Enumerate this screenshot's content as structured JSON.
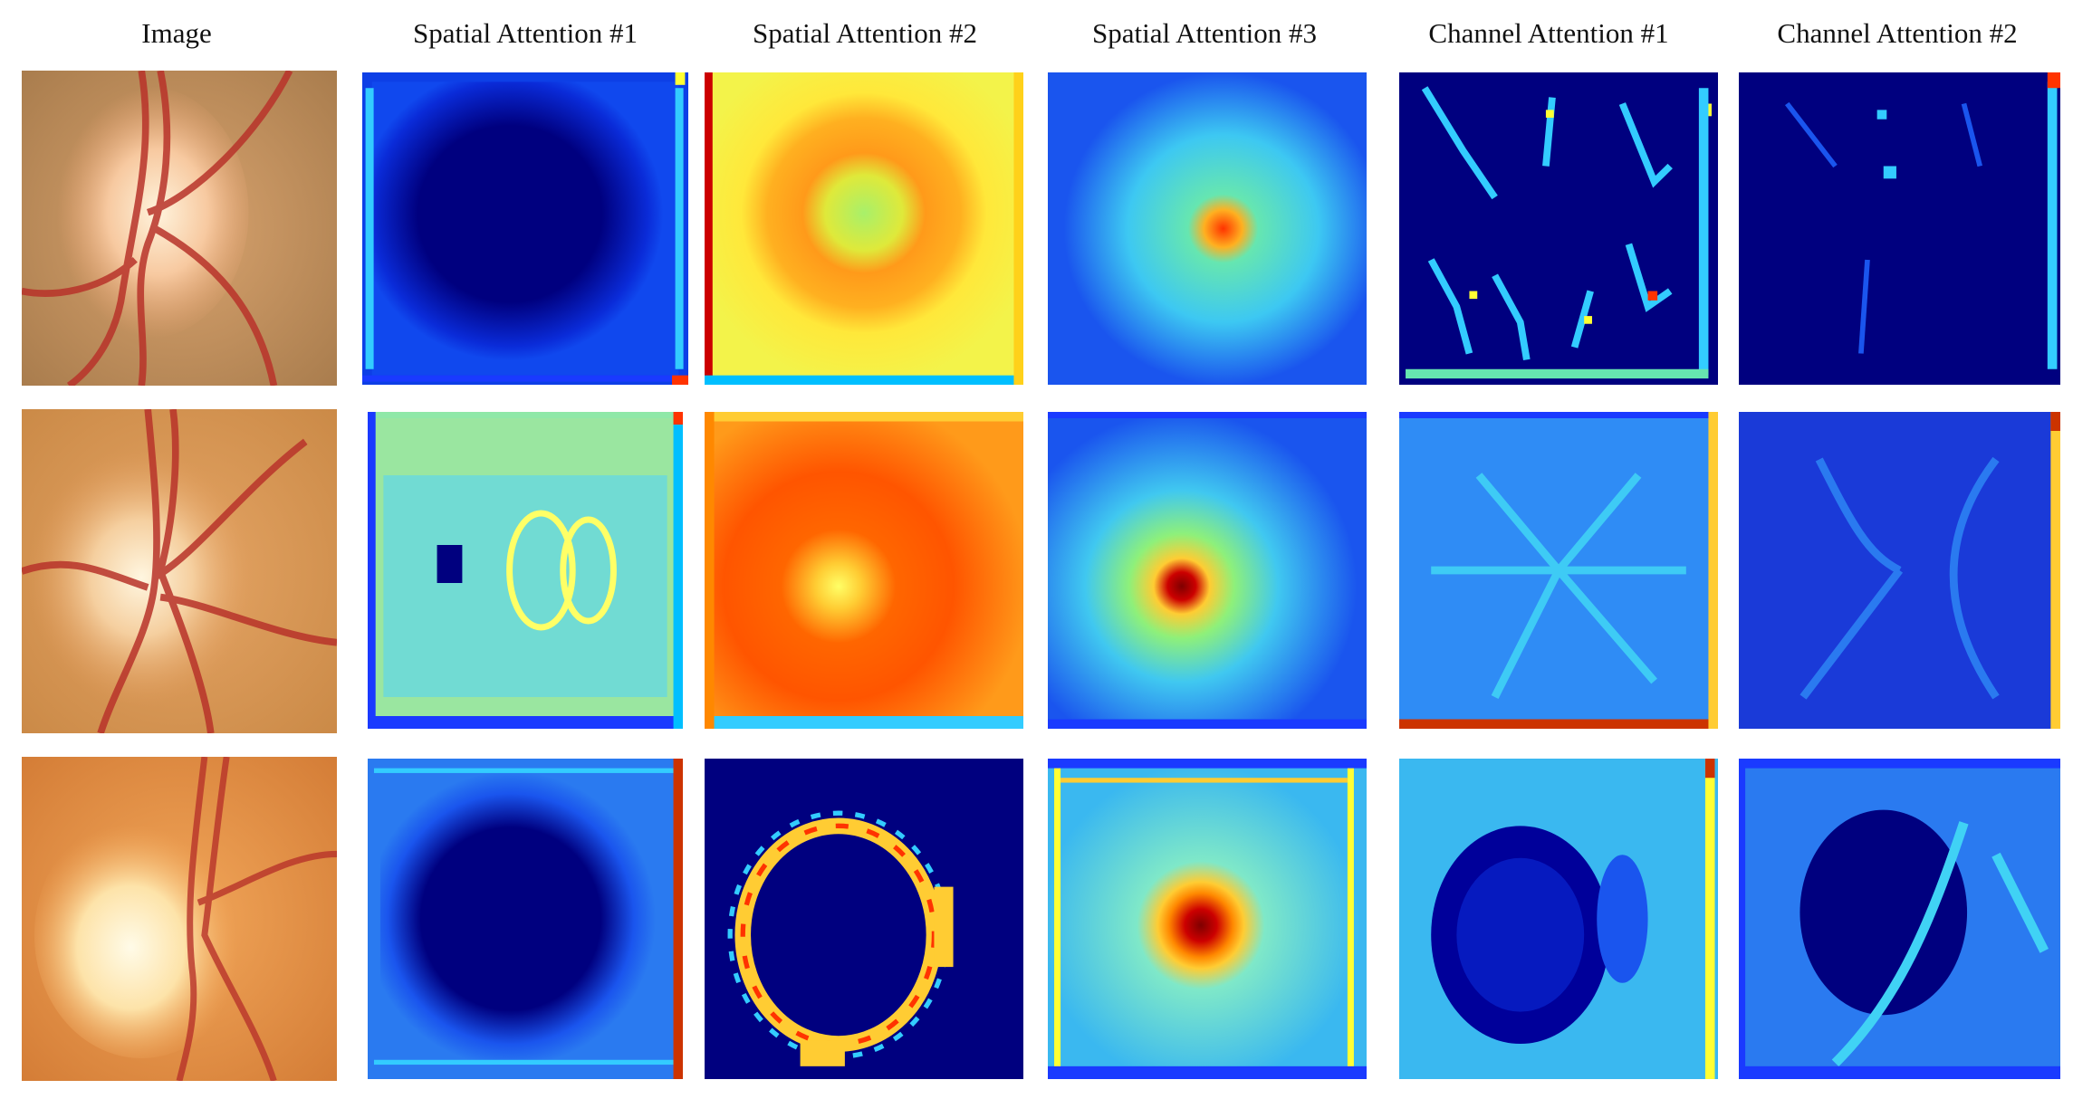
{
  "headers": [
    "Image",
    "Spatial Attention #1",
    "Spatial Attention #2",
    "Spatial Attention #3",
    "Channel Attention #1",
    "Channel Attention #2"
  ],
  "colors": {
    "jet_dark_blue": "#00007f",
    "jet_blue": "#0033ff",
    "jet_cyan": "#33ccff",
    "jet_yellow": "#ffff33",
    "jet_orange": "#ff8800",
    "jet_red": "#cc0000",
    "fundus_orange": "#d8904a",
    "fundus_disc": "#fbe2b0",
    "vessel_red": "#b8332a"
  }
}
